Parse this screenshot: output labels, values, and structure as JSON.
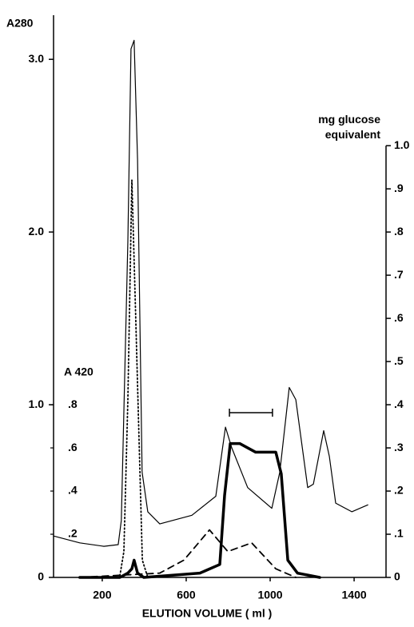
{
  "chart_data": {
    "type": "line",
    "y_label": "A280",
    "y2_label": "mg glucose\nequivalent",
    "y3_label": "A 420",
    "x_label": "ELUTION VOLUME  ( ml )",
    "xlim": [
      -32,
      1552
    ],
    "xticks": [
      200,
      600,
      1000,
      1400
    ],
    "ylim": [
      0,
      3.2
    ],
    "yticks": [
      0,
      {
        "value": 1,
        "label": "1.0"
      },
      {
        "value": 2,
        "label": "2.0"
      },
      {
        "value": 3,
        "label": "3.0"
      }
    ],
    "y2lim": [
      0,
      1.28
    ],
    "y2ticks": [
      0,
      {
        "value": 0.1,
        "label": ".1"
      },
      {
        "value": 0.2,
        "label": ".2"
      },
      {
        "value": 0.3,
        "label": ".3"
      },
      {
        "value": 0.4,
        "label": ".4"
      },
      {
        "value": 0.5,
        "label": ".5"
      },
      {
        "value": 0.6,
        "label": ".6"
      },
      {
        "value": 0.7,
        "label": ".7"
      },
      {
        "value": 0.8,
        "label": ".8"
      },
      {
        "value": 0.9,
        "label": ".9"
      },
      {
        "value": 1,
        "label": "1.0"
      }
    ],
    "y3lim": [
      0,
      2.56
    ],
    "y3ticks": [
      {
        "value": 0.2,
        "label": ".2"
      },
      {
        "value": 0.4,
        "label": ".4"
      },
      {
        "value": 0.6,
        "label": ".6"
      },
      {
        "value": 0.8,
        "label": ".8"
      }
    ],
    "bracket": [
      806,
      1011
    ],
    "series": [
      {
        "color": "#000000",
        "style": "thin",
        "x": [
          -32,
          93,
          208,
          276,
          291,
          322,
          337,
          352,
          368,
          390,
          417,
          474,
          627,
          741,
          787,
          817,
          893,
          1008,
          1046,
          1091,
          1122,
          1179,
          1206,
          1255,
          1282,
          1312,
          1389,
          1465
        ],
        "values": [
          0.24,
          0.2,
          0.18,
          0.19,
          0.33,
          1.95,
          3.06,
          3.11,
          2.42,
          0.61,
          0.38,
          0.31,
          0.36,
          0.47,
          0.87,
          0.75,
          0.52,
          0.4,
          0.61,
          1.1,
          1.03,
          0.52,
          0.54,
          0.85,
          0.7,
          0.43,
          0.38,
          0.42
        ]
      },
      {
        "color": "#000000",
        "style": "dotted",
        "x": [
          284,
          303,
          322,
          341,
          360,
          391,
          417
        ],
        "values": [
          0.01,
          0.15,
          1.03,
          2.3,
          1.49,
          0.1,
          0
        ]
      },
      {
        "color": "#000000",
        "style": "thick",
        "axis": "y2",
        "x": [
          93,
          284,
          322,
          341,
          352,
          368,
          398,
          665,
          760,
          783,
          810,
          855,
          931,
          1027,
          1053,
          1084,
          1130,
          1236
        ],
        "values": [
          0,
          0,
          0.01,
          0.02,
          0.04,
          0.01,
          0,
          0.01,
          0.03,
          0.19,
          0.31,
          0.31,
          0.29,
          0.29,
          0.24,
          0.04,
          0.01,
          0
        ]
      },
      {
        "color": "#000000",
        "style": "dashed",
        "axis": "y2",
        "x": [
          93,
          474,
          589,
          711,
          798,
          912,
          1027,
          1122
        ],
        "values": [
          0,
          0.01,
          0.04,
          0.11,
          0.06,
          0.08,
          0.02,
          0
        ]
      }
    ]
  }
}
